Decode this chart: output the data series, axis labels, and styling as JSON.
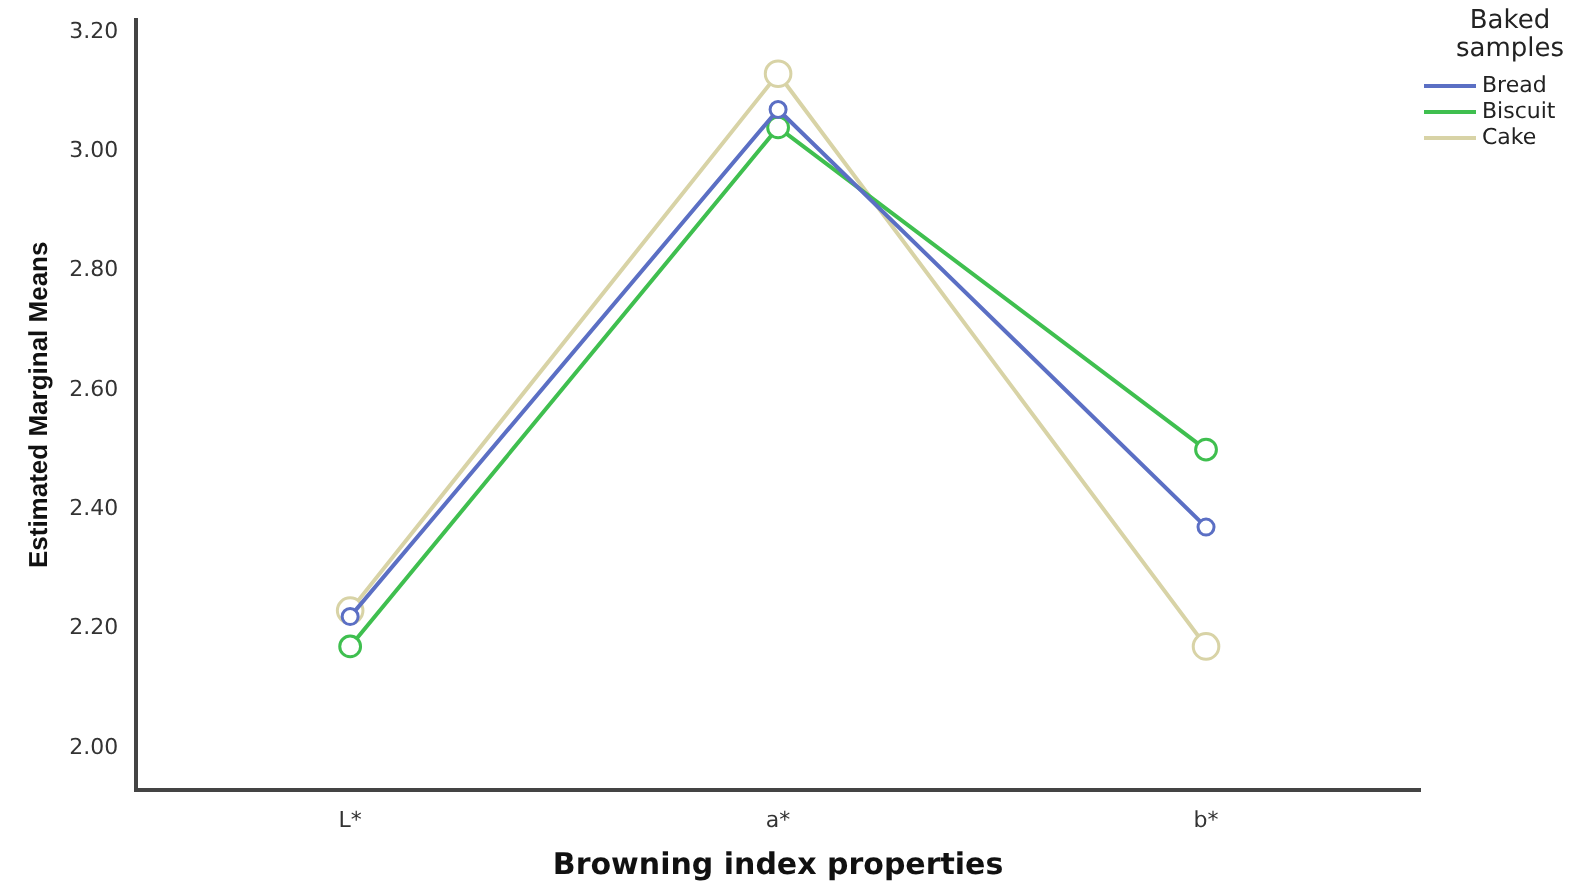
{
  "chart_data": {
    "type": "line",
    "xlabel": "Browning index properties",
    "ylabel": "Estimated Marginal Means",
    "legend_title": "Baked samples",
    "categories": [
      "L*",
      "a*",
      "b*"
    ],
    "series": [
      {
        "name": "Bread",
        "color": "#5b6fc4",
        "values": [
          2.22,
          3.07,
          2.37
        ]
      },
      {
        "name": "Biscuit",
        "color": "#3fbf4f",
        "values": [
          2.17,
          3.04,
          2.5
        ]
      },
      {
        "name": "Cake",
        "color": "#d8d3a6",
        "values": [
          2.23,
          3.13,
          2.17
        ]
      }
    ],
    "ylim": [
      1.93,
      3.22
    ],
    "yticks": [
      {
        "value": 2,
        "label": "2.00"
      },
      {
        "value": 2.2,
        "label": "2.20"
      },
      {
        "value": 2.4,
        "label": "2.40"
      },
      {
        "value": 2.6,
        "label": "2.60"
      },
      {
        "value": 2.8,
        "label": "2.80"
      },
      {
        "value": 3,
        "label": "3.00"
      },
      {
        "value": 3.2,
        "label": "3.20"
      }
    ],
    "grid": false,
    "legend": "top right",
    "marker": "circle",
    "line_style": "solid"
  }
}
